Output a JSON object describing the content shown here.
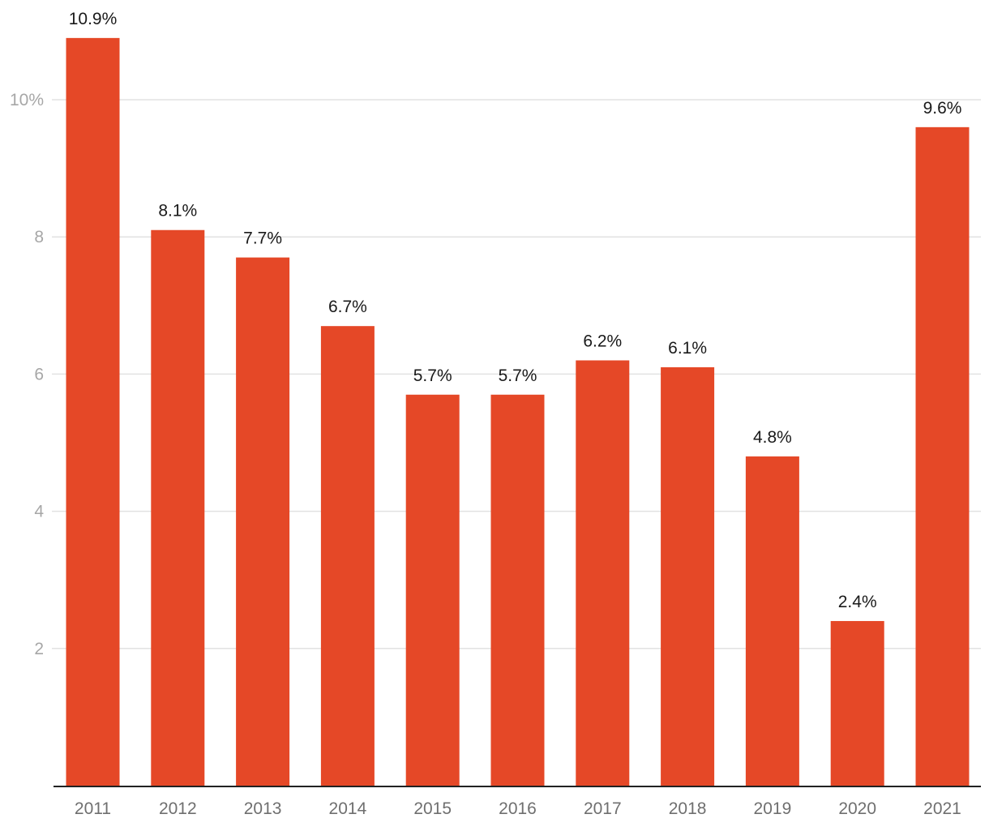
{
  "chart_data": {
    "type": "bar",
    "title": "",
    "xlabel": "",
    "ylabel": "",
    "categories": [
      "2011",
      "2012",
      "2013",
      "2014",
      "2015",
      "2016",
      "2017",
      "2018",
      "2019",
      "2020",
      "2021"
    ],
    "values": [
      10.9,
      8.1,
      7.7,
      6.7,
      5.7,
      5.7,
      6.2,
      6.1,
      4.8,
      2.4,
      9.6
    ],
    "data_labels": [
      "10.9%",
      "8.1%",
      "7.7%",
      "6.7%",
      "5.7%",
      "5.7%",
      "6.2%",
      "6.1%",
      "4.8%",
      "2.4%",
      "9.6%"
    ],
    "ylim": [
      0,
      11.4
    ],
    "yticks": [
      2,
      4,
      6,
      8,
      10
    ],
    "ytick_labels": [
      "2",
      "4",
      "6",
      "8",
      "10%"
    ],
    "grid": true,
    "bar_color": "#e54827"
  }
}
